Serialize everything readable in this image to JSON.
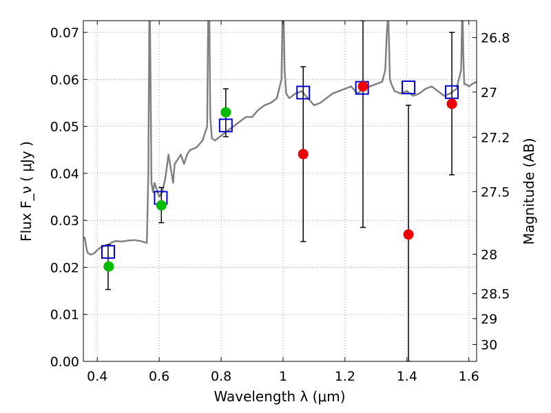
{
  "chart_data": {
    "type": "scatter",
    "xlabel": "Wavelength  λ (μm)",
    "ylabel": "Flux  F_ν  ( μJy )",
    "ylabel_right": "Magnitude (AB)",
    "xlim": [
      0.355,
      1.625
    ],
    "ylim": [
      0.0,
      0.0725
    ],
    "grid": true,
    "x_ticks": [
      0.4,
      0.6,
      0.8,
      1.0,
      1.2,
      1.4,
      1.6
    ],
    "x_tick_labels": [
      "0.4",
      "0.6",
      "0.8",
      "1",
      "1.2",
      "1.4",
      "1.6"
    ],
    "y_ticks": [
      0.0,
      0.01,
      0.02,
      0.03,
      0.04,
      0.05,
      0.06,
      0.07
    ],
    "y_tick_labels": [
      "0.00",
      "0.01",
      "0.02",
      "0.03",
      "0.04",
      "0.05",
      "0.06",
      "0.07"
    ],
    "right_ticks": [
      {
        "label": "26.8",
        "flux": 0.0689
      },
      {
        "label": "27",
        "flux": 0.0573
      },
      {
        "label": "27.2",
        "flux": 0.0477
      },
      {
        "label": "27.5",
        "flux": 0.0361
      },
      {
        "label": "28",
        "flux": 0.0228
      },
      {
        "label": "28.5",
        "flux": 0.0144
      },
      {
        "label": "29",
        "flux": 0.0091
      },
      {
        "label": "30",
        "flux": 0.0036
      }
    ],
    "series": [
      {
        "kind": "line",
        "color": "#808080",
        "x": [
          0.355,
          0.36,
          0.365,
          0.37,
          0.38,
          0.39,
          0.4,
          0.41,
          0.42,
          0.43,
          0.44,
          0.45,
          0.46,
          0.48,
          0.5,
          0.52,
          0.54,
          0.56,
          0.565,
          0.568,
          0.57,
          0.572,
          0.575,
          0.58,
          0.585,
          0.59,
          0.6,
          0.61,
          0.62,
          0.63,
          0.64,
          0.645,
          0.65,
          0.66,
          0.67,
          0.68,
          0.69,
          0.7,
          0.72,
          0.74,
          0.755,
          0.758,
          0.76,
          0.762,
          0.765,
          0.77,
          0.78,
          0.8,
          0.82,
          0.84,
          0.86,
          0.88,
          0.9,
          0.92,
          0.94,
          0.96,
          0.98,
          0.995,
          0.998,
          1.0,
          1.002,
          1.005,
          1.01,
          1.02,
          1.04,
          1.06,
          1.08,
          1.1,
          1.12,
          1.14,
          1.16,
          1.18,
          1.2,
          1.22,
          1.24,
          1.26,
          1.28,
          1.3,
          1.32,
          1.33,
          1.335,
          1.338,
          1.34,
          1.342,
          1.345,
          1.35,
          1.36,
          1.38,
          1.4,
          1.42,
          1.44,
          1.46,
          1.48,
          1.5,
          1.52,
          1.54,
          1.56,
          1.575,
          1.578,
          1.58,
          1.582,
          1.585,
          1.59,
          1.6,
          1.61,
          1.625
        ],
        "y": [
          0.0265,
          0.0262,
          0.024,
          0.023,
          0.0227,
          0.023,
          0.0237,
          0.0242,
          0.0245,
          0.0246,
          0.025,
          0.0254,
          0.0256,
          0.0255,
          0.0257,
          0.0258,
          0.0256,
          0.0252,
          0.04,
          0.0725,
          0.0725,
          0.06,
          0.038,
          0.036,
          0.038,
          0.037,
          0.035,
          0.036,
          0.039,
          0.044,
          0.04,
          0.038,
          0.042,
          0.043,
          0.044,
          0.042,
          0.044,
          0.045,
          0.0455,
          0.047,
          0.05,
          0.0725,
          0.0725,
          0.0725,
          0.052,
          0.0475,
          0.047,
          0.048,
          0.049,
          0.05,
          0.051,
          0.052,
          0.052,
          0.0535,
          0.0545,
          0.055,
          0.056,
          0.06,
          0.0725,
          0.0725,
          0.0725,
          0.062,
          0.057,
          0.056,
          0.057,
          0.0575,
          0.056,
          0.0545,
          0.055,
          0.056,
          0.057,
          0.0575,
          0.058,
          0.0585,
          0.057,
          0.058,
          0.0585,
          0.059,
          0.0595,
          0.062,
          0.07,
          0.0725,
          0.0725,
          0.068,
          0.06,
          0.059,
          0.0575,
          0.057,
          0.0575,
          0.0565,
          0.057,
          0.058,
          0.0585,
          0.0575,
          0.0565,
          0.057,
          0.058,
          0.062,
          0.0725,
          0.0725,
          0.065,
          0.059,
          0.059,
          0.0585,
          0.059,
          0.0595
        ]
      },
      {
        "kind": "open-square",
        "color": "#0000cc",
        "x": [
          0.435,
          0.605,
          0.815,
          1.065,
          1.255,
          1.405,
          1.545
        ],
        "y": [
          0.0233,
          0.0348,
          0.0502,
          0.0572,
          0.0582,
          0.0583,
          0.0573
        ]
      },
      {
        "kind": "filled-circle",
        "color": "#00bb00",
        "x": [
          0.437,
          0.607,
          0.815
        ],
        "y": [
          0.0202,
          0.0332,
          0.053
        ]
      },
      {
        "kind": "filled-circle",
        "color": "#ee0000",
        "x": [
          1.065,
          1.258,
          1.405,
          1.545
        ],
        "y": [
          0.0441,
          0.0585,
          0.027,
          0.0548
        ]
      }
    ],
    "error_bars": [
      {
        "x": 0.435,
        "low": 0.0153,
        "high": 0.0248
      },
      {
        "x": 0.607,
        "low": 0.0295,
        "high": 0.037
      },
      {
        "x": 0.815,
        "low": 0.0478,
        "high": 0.058
      },
      {
        "x": 1.065,
        "low": 0.0255,
        "high": 0.0627
      },
      {
        "x": 1.258,
        "low": 0.0285,
        "high": 0.0725
      },
      {
        "x": 1.405,
        "low": 0.0,
        "high": 0.0545
      },
      {
        "x": 1.545,
        "low": 0.0397,
        "high": 0.07
      }
    ]
  }
}
